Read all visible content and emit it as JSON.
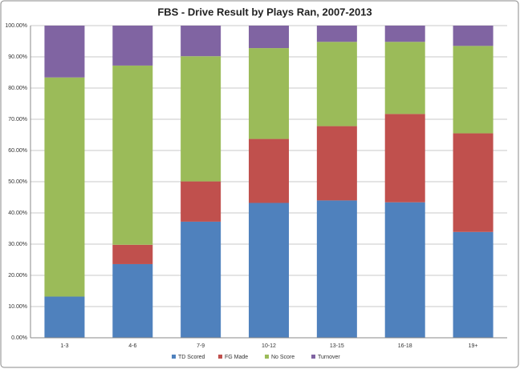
{
  "chart_data": {
    "type": "stacked-bar",
    "title": "FBS - Drive Result by Plays Ran, 2007-2013",
    "categories": [
      "1-3",
      "4-6",
      "7-9",
      "10-12",
      "13-15",
      "16-18",
      "19+"
    ],
    "series": [
      {
        "name": "TD Scored",
        "color": "#4f81bd",
        "values": [
          13.2,
          23.6,
          37.2,
          43.2,
          44.0,
          43.4,
          33.9
        ]
      },
      {
        "name": "FG Made",
        "color": "#c0504d",
        "values": [
          0,
          6.2,
          12.9,
          20.5,
          23.8,
          28.3,
          31.6
        ]
      },
      {
        "name": "No Score",
        "color": "#9bbb59",
        "values": [
          70.2,
          57.4,
          40.1,
          29.1,
          27.0,
          23.1,
          28.0
        ]
      },
      {
        "name": "Turnover",
        "color": "#8064a2",
        "values": [
          16.6,
          12.8,
          9.8,
          7.2,
          5.2,
          5.2,
          6.5
        ]
      }
    ],
    "ylim": [
      0,
      100
    ],
    "yticks": [
      {
        "value": 0,
        "label": "0.00%"
      },
      {
        "value": 10,
        "label": "10.00%"
      },
      {
        "value": 20,
        "label": "20.00%"
      },
      {
        "value": 30,
        "label": "30.00%"
      },
      {
        "value": 40,
        "label": "40.00%"
      },
      {
        "value": 50,
        "label": "50.00%"
      },
      {
        "value": 60,
        "label": "60.00%"
      },
      {
        "value": 70,
        "label": "70.00%"
      },
      {
        "value": 80,
        "label": "80.00%"
      },
      {
        "value": 90,
        "label": "90.00%"
      },
      {
        "value": 100,
        "label": "100.00%"
      }
    ],
    "grid": true,
    "legend": "bottom"
  }
}
